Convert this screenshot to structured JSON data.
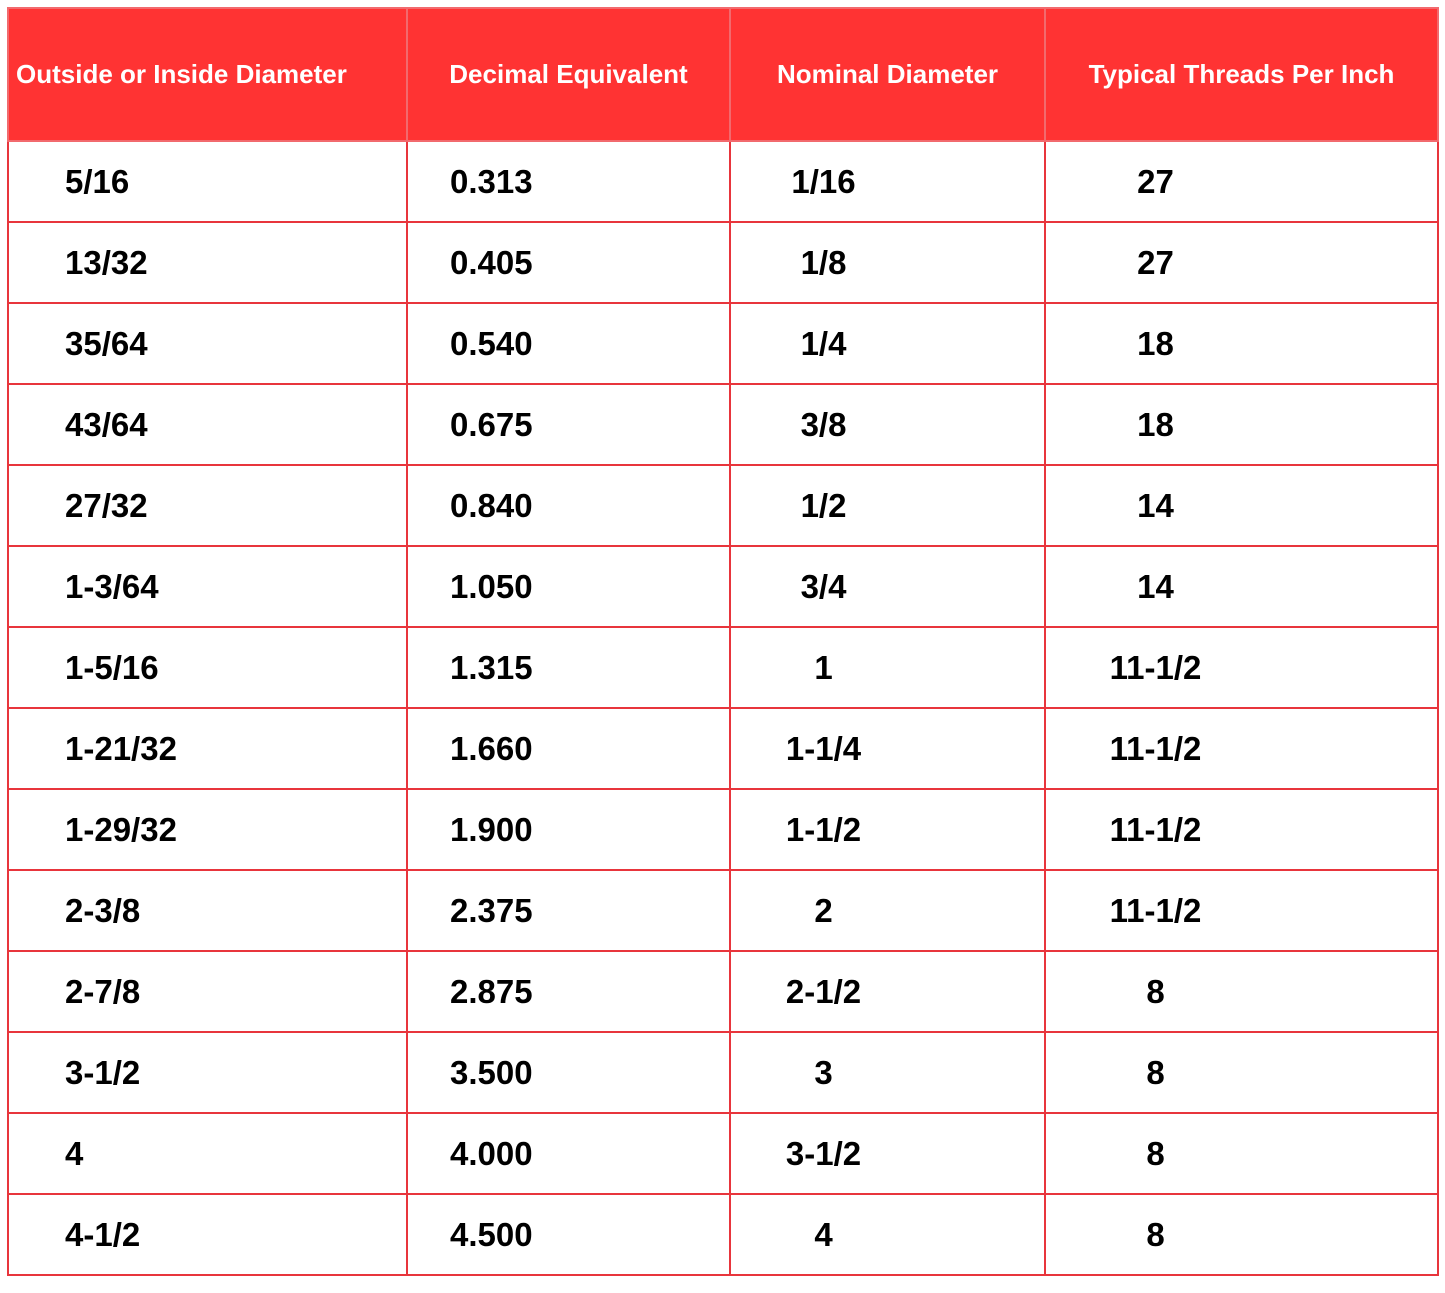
{
  "table": {
    "header": [
      "Outside or Inside Diameter",
      "Decimal Equivalent",
      "Nominal Diameter",
      "Typical Threads Per Inch"
    ],
    "rows": [
      [
        "5/16",
        "0.313",
        "1/16",
        "27"
      ],
      [
        "13/32",
        "0.405",
        "1/8",
        "27"
      ],
      [
        "35/64",
        "0.540",
        "1/4",
        "18"
      ],
      [
        "43/64",
        "0.675",
        "3/8",
        "18"
      ],
      [
        "27/32",
        "0.840",
        "1/2",
        "14"
      ],
      [
        "1-3/64",
        "1.050",
        "3/4",
        "14"
      ],
      [
        "1-5/16",
        "1.315",
        "1",
        "11-1/2"
      ],
      [
        "1-21/32",
        "1.660",
        "1-1/4",
        "11-1/2"
      ],
      [
        "1-29/32",
        "1.900",
        "1-1/2",
        "11-1/2"
      ],
      [
        "2-3/8",
        "2.375",
        "2",
        "11-1/2"
      ],
      [
        "2-7/8",
        "2.875",
        "2-1/2",
        "8"
      ],
      [
        "3-1/2",
        "3.500",
        "3",
        "8"
      ],
      [
        "4",
        "4.000",
        "3-1/2",
        "8"
      ],
      [
        "4-1/2",
        "4.500",
        "4",
        "8"
      ]
    ]
  }
}
